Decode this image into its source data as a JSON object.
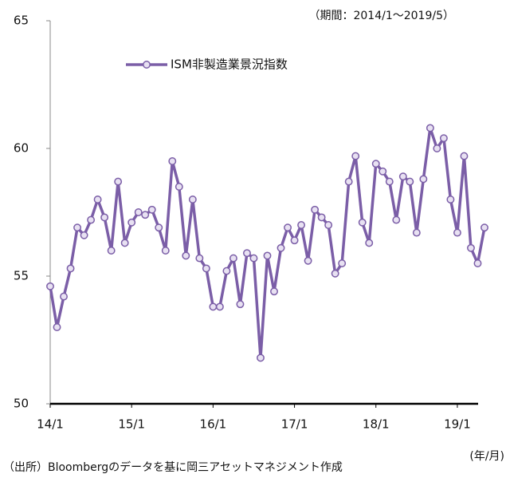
{
  "chart_data": {
    "type": "line",
    "subtitle": "（期間：2014/1～2019/5）",
    "source": "（出所）Bloombergのデータを基に岡三アセットマネジメント作成",
    "x_unit": "(年/月)",
    "categories": [
      "14/1",
      null,
      null,
      null,
      null,
      null,
      null,
      null,
      null,
      null,
      null,
      null,
      "15/1",
      null,
      null,
      null,
      null,
      null,
      null,
      null,
      null,
      null,
      null,
      null,
      "16/1",
      null,
      null,
      null,
      null,
      null,
      null,
      null,
      null,
      null,
      null,
      null,
      "17/1",
      null,
      null,
      null,
      null,
      null,
      null,
      null,
      null,
      null,
      null,
      null,
      "18/1",
      null,
      null,
      null,
      null,
      null,
      null,
      null,
      null,
      null,
      null,
      null,
      "19/1",
      null,
      null,
      null,
      null
    ],
    "series": [
      {
        "name": "ISM非製造業景況指数",
        "color": "#7b5ea7",
        "marker_fill": "#e8e1f2",
        "values": [
          54.6,
          53.0,
          54.2,
          55.3,
          56.9,
          56.6,
          57.2,
          58.0,
          57.3,
          56.0,
          58.7,
          56.3,
          57.1,
          57.5,
          57.4,
          57.6,
          56.9,
          56.0,
          59.5,
          58.5,
          55.8,
          58.0,
          55.7,
          55.3,
          53.8,
          53.8,
          55.2,
          55.7,
          53.9,
          55.9,
          55.7,
          51.8,
          55.8,
          54.4,
          56.1,
          56.9,
          56.4,
          57.0,
          55.6,
          57.6,
          57.3,
          57.0,
          55.1,
          55.5,
          58.7,
          59.7,
          57.1,
          56.3,
          59.4,
          59.1,
          58.7,
          57.2,
          58.9,
          58.7,
          56.7,
          58.8,
          60.8,
          60.0,
          60.4,
          58.0,
          56.7,
          59.7,
          56.1,
          55.5,
          56.9
        ]
      }
    ],
    "ylim": [
      50,
      65
    ],
    "yticks": [
      50,
      55,
      60,
      65
    ],
    "grid": false
  }
}
